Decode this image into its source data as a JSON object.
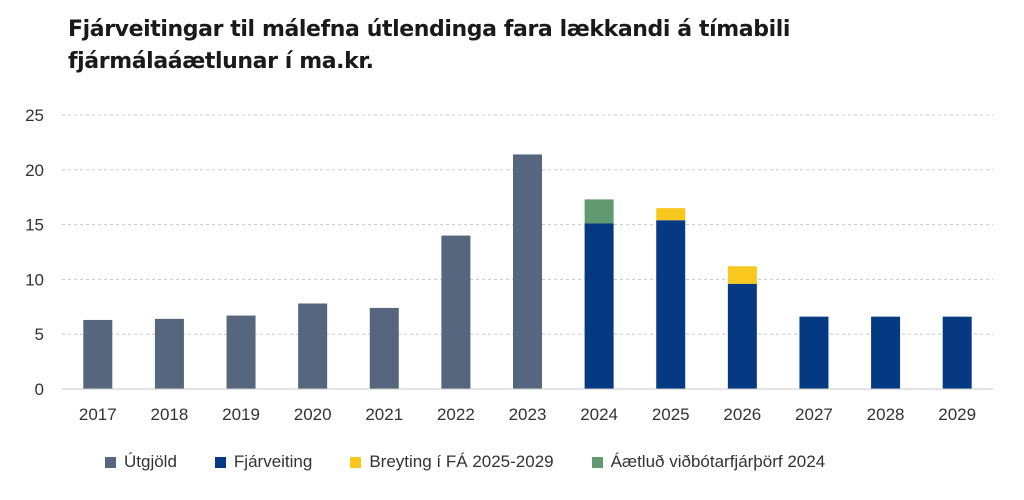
{
  "chart_data": {
    "type": "bar",
    "stacked": true,
    "title": "Fjárveitingar til málefna útlendinga fara lækkandi á tímabili fjármálaáætlunar í ma.kr.",
    "xlabel": "",
    "ylabel": "",
    "ylim": [
      0,
      25
    ],
    "yticks": [
      0,
      5,
      10,
      15,
      20,
      25
    ],
    "grid": true,
    "legend_position": "bottom",
    "categories": [
      "2017",
      "2018",
      "2019",
      "2020",
      "2021",
      "2022",
      "2023",
      "2024",
      "2025",
      "2026",
      "2027",
      "2028",
      "2029"
    ],
    "series": [
      {
        "name": "Útgjöld",
        "color": "#56667f",
        "values": [
          6.3,
          6.4,
          6.7,
          7.8,
          7.4,
          14.0,
          21.4,
          0,
          0,
          0,
          0,
          0,
          0
        ]
      },
      {
        "name": "Fjárveiting",
        "color": "#053a82",
        "values": [
          0,
          0,
          0,
          0,
          0,
          0,
          0,
          15.1,
          15.4,
          9.6,
          6.6,
          6.6,
          6.6
        ]
      },
      {
        "name": "Breyting í FÁ 2025-2029",
        "color": "#f9c81e",
        "values": [
          0,
          0,
          0,
          0,
          0,
          0,
          0,
          0,
          1.1,
          1.6,
          0,
          0,
          0
        ]
      },
      {
        "name": "Áætluð viðbótarfjárþörf 2024",
        "color": "#619a71",
        "values": [
          0,
          0,
          0,
          0,
          0,
          0,
          0,
          2.2,
          0,
          0,
          0,
          0,
          0
        ]
      }
    ]
  }
}
